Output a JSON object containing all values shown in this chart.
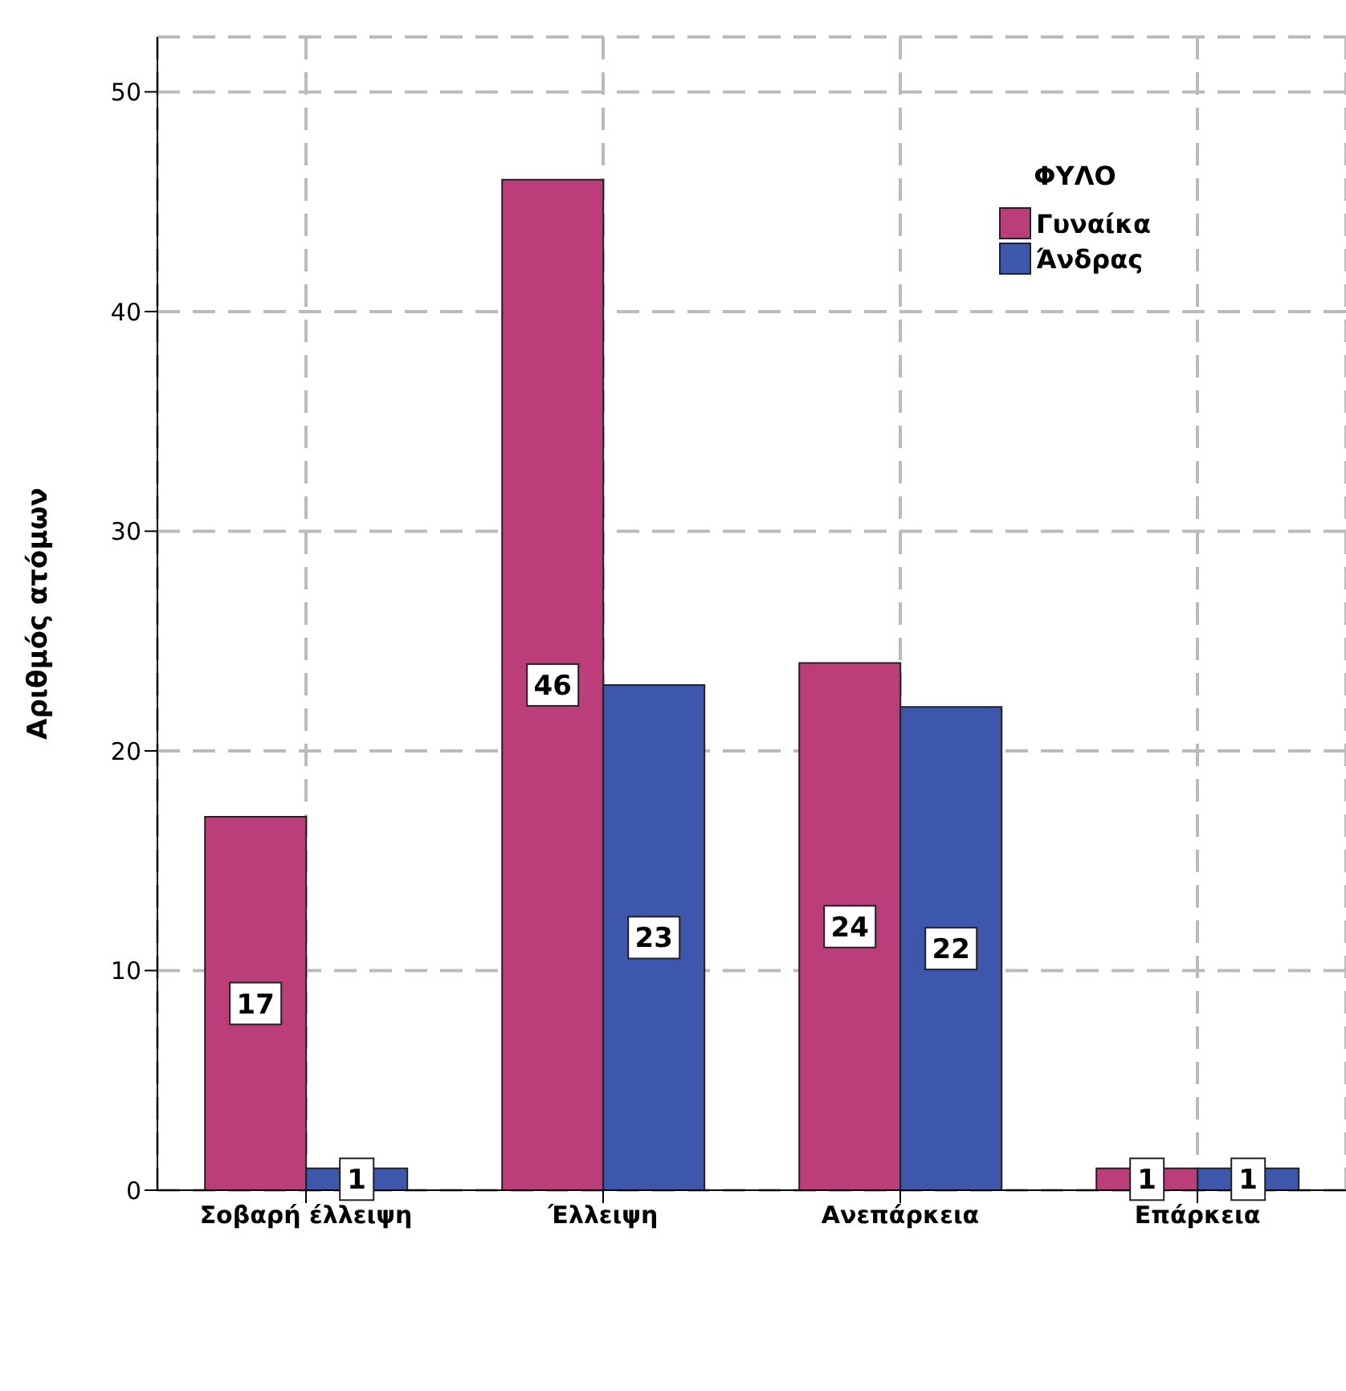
{
  "chart_data": {
    "type": "bar",
    "ylabel": "Αριθμός ατόμων",
    "legend_title": "ΦΥΛΟ",
    "categories": [
      "Σοβαρή έλλειψη",
      "Έλλειψη",
      "Ανεπάρκεια",
      "Επάρκεια"
    ],
    "series": [
      {
        "name": "Γυναίκα",
        "color": "#bb3d7a",
        "values": [
          17,
          46,
          24,
          1
        ]
      },
      {
        "name": "Άνδρας",
        "color": "#3c57ab",
        "values": [
          1,
          23,
          22,
          1
        ]
      }
    ],
    "ylim": [
      0,
      52.5
    ],
    "yticks": [
      0,
      10,
      20,
      30,
      40,
      50
    ],
    "grid": true,
    "legend": "top right",
    "data_labels": true
  }
}
